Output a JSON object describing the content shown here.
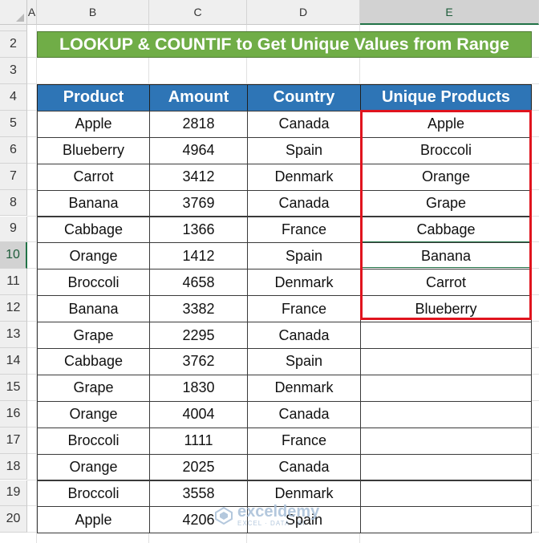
{
  "column_headers": [
    "A",
    "B",
    "C",
    "D",
    "E"
  ],
  "active_column": "E",
  "row_numbers": [
    "2",
    "3",
    "4",
    "5",
    "6",
    "7",
    "8",
    "9",
    "10",
    "11",
    "12",
    "13",
    "14",
    "15",
    "16",
    "17",
    "18",
    "19",
    "20"
  ],
  "active_row": "10",
  "title": "LOOKUP & COUNTIF to Get Unique Values from Range",
  "table": {
    "headers": [
      "Product",
      "Amount",
      "Country",
      "Unique Products"
    ],
    "rows": [
      [
        "Apple",
        "2818",
        "Canada",
        "Apple"
      ],
      [
        "Blueberry",
        "4964",
        "Spain",
        "Broccoli"
      ],
      [
        "Carrot",
        "3412",
        "Denmark",
        "Orange"
      ],
      [
        "Banana",
        "3769",
        "Canada",
        "Grape"
      ],
      [
        "Cabbage",
        "1366",
        "France",
        "Cabbage"
      ],
      [
        "Orange",
        "1412",
        "Spain",
        "Banana"
      ],
      [
        "Broccoli",
        "4658",
        "Denmark",
        "Carrot"
      ],
      [
        "Banana",
        "3382",
        "France",
        "Blueberry"
      ],
      [
        "Grape",
        "2295",
        "Canada",
        ""
      ],
      [
        "Cabbage",
        "3762",
        "Spain",
        ""
      ],
      [
        "Grape",
        "1830",
        "Denmark",
        ""
      ],
      [
        "Orange",
        "4004",
        "Canada",
        ""
      ],
      [
        "Broccoli",
        "1111",
        "France",
        ""
      ],
      [
        "Orange",
        "2025",
        "Canada",
        ""
      ],
      [
        "Broccoli",
        "3558",
        "Denmark",
        ""
      ],
      [
        "Apple",
        "4206",
        "Spain",
        ""
      ]
    ]
  },
  "watermark": {
    "main": "exceldemy",
    "sub": "EXCEL · DATA · BI"
  },
  "colors": {
    "title_bg": "#70ad47",
    "header_bg": "#2e75b6",
    "highlight_border": "#e0141e",
    "selection": "#217346"
  }
}
